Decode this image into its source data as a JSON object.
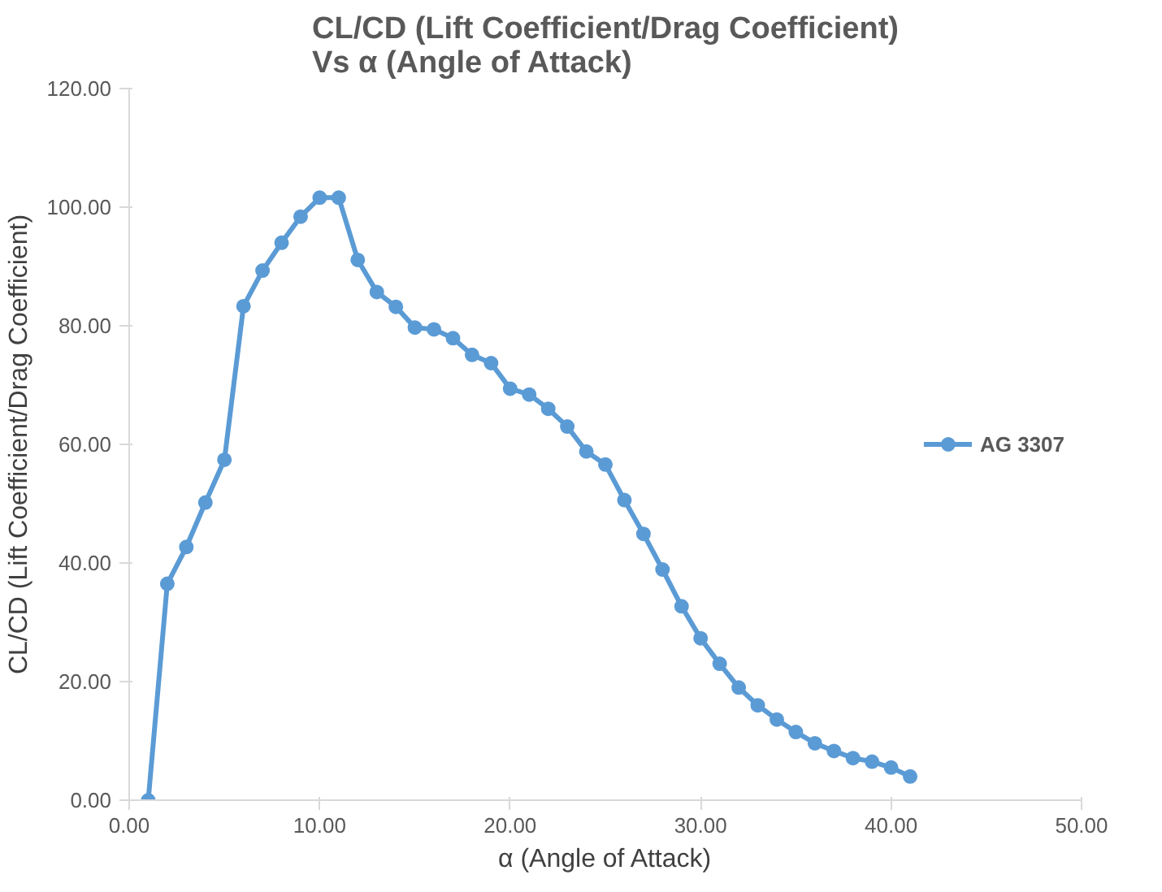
{
  "chart_data": {
    "type": "line",
    "title": "CL/CD (Lift Coefficient/Drag Coefficient)\nVs α (Angle of Attack)",
    "xlabel": "α (Angle of Attack)",
    "ylabel": "CL/CD (Lift Coefficient/Drag Coefficient)",
    "x": [
      1,
      2,
      3,
      4,
      5,
      6,
      7,
      8,
      9,
      10,
      11,
      12,
      13,
      14,
      15,
      16,
      17,
      18,
      19,
      20,
      21,
      22,
      23,
      24,
      25,
      26,
      27,
      28,
      29,
      30,
      31,
      32,
      33,
      34,
      35,
      36,
      37,
      38,
      39,
      40,
      41
    ],
    "series": [
      {
        "name": "AG 3307",
        "color": "#5b9bd5",
        "values": [
          0,
          36.5,
          42.7,
          50.2,
          57.4,
          83.3,
          89.3,
          94.0,
          98.4,
          101.6,
          101.6,
          91.1,
          85.7,
          83.2,
          79.7,
          79.4,
          77.9,
          75.1,
          73.7,
          69.4,
          68.4,
          66.0,
          63.0,
          58.8,
          56.6,
          50.6,
          44.9,
          38.9,
          32.7,
          27.3,
          23.0,
          19.0,
          16.0,
          13.6,
          11.5,
          9.6,
          8.3,
          7.1,
          6.5,
          5.5,
          4.0
        ]
      }
    ],
    "xlim": [
      0,
      50
    ],
    "ylim": [
      0,
      120
    ],
    "xticks": [
      {
        "value": 0,
        "label": "0.00"
      },
      {
        "value": 10,
        "label": "10.00"
      },
      {
        "value": 20,
        "label": "20.00"
      },
      {
        "value": 30,
        "label": "30.00"
      },
      {
        "value": 40,
        "label": "40.00"
      },
      {
        "value": 50,
        "label": "50.00"
      }
    ],
    "yticks": [
      {
        "value": 0,
        "label": "0.00"
      },
      {
        "value": 20,
        "label": "20.00"
      },
      {
        "value": 40,
        "label": "40.00"
      },
      {
        "value": 60,
        "label": "60.00"
      },
      {
        "value": 80,
        "label": "80.00"
      },
      {
        "value": 100,
        "label": "100.00"
      },
      {
        "value": 120,
        "label": "120.00"
      }
    ],
    "grid": false,
    "legend": "right",
    "marker": "circle",
    "line_style": "solid"
  }
}
